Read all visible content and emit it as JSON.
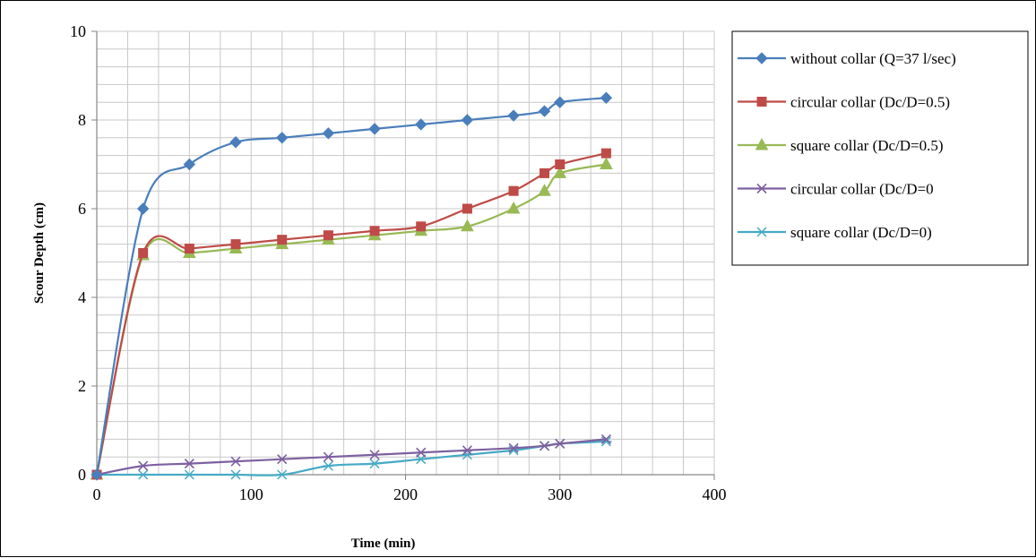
{
  "chart_data": {
    "type": "line",
    "title": "",
    "xlabel": "Time (min)",
    "ylabel": "Scour Depth (cm)",
    "xlim": [
      0,
      400
    ],
    "ylim": [
      0,
      10
    ],
    "x_ticks": [
      "0",
      "100",
      "200",
      "300",
      "400"
    ],
    "y_ticks": [
      "0",
      "2",
      "4",
      "6",
      "8",
      "10"
    ],
    "grid": true,
    "legend_position": "right",
    "series": [
      {
        "name": "without collar (Q=37 l/sec)",
        "color": "#4A7EBB",
        "marker": "diamond",
        "x": [
          0,
          30,
          60,
          90,
          120,
          150,
          180,
          210,
          240,
          270,
          290,
          300,
          330
        ],
        "y": [
          0,
          6.0,
          7.0,
          7.5,
          7.6,
          7.7,
          7.8,
          7.9,
          8.0,
          8.1,
          8.2,
          8.4,
          8.5
        ]
      },
      {
        "name": "circular collar (Dc/D=0.5)",
        "color": "#BE4B48",
        "marker": "square",
        "x": [
          0,
          30,
          60,
          90,
          120,
          150,
          180,
          210,
          240,
          270,
          290,
          300,
          330
        ],
        "y": [
          0,
          5.0,
          5.1,
          5.2,
          5.3,
          5.4,
          5.5,
          5.6,
          6.0,
          6.4,
          6.8,
          7.0,
          7.25
        ]
      },
      {
        "name": "square collar (Dc/D=0.5)",
        "color": "#98B954",
        "marker": "triangle",
        "x": [
          0,
          30,
          60,
          90,
          120,
          150,
          180,
          210,
          240,
          270,
          290,
          300,
          330
        ],
        "y": [
          0,
          4.95,
          5.0,
          5.1,
          5.2,
          5.3,
          5.4,
          5.5,
          5.6,
          6.0,
          6.4,
          6.8,
          7.0
        ]
      },
      {
        "name": "circular collar (Dc/D=0",
        "color": "#7D60A0",
        "marker": "x",
        "x": [
          0,
          30,
          60,
          90,
          120,
          150,
          180,
          210,
          240,
          270,
          290,
          300,
          330
        ],
        "y": [
          0,
          0.2,
          0.25,
          0.3,
          0.35,
          0.4,
          0.45,
          0.5,
          0.55,
          0.6,
          0.65,
          0.7,
          0.8
        ]
      },
      {
        "name": "square collar (Dc/D=0)",
        "color": "#46AAC5",
        "marker": "asterisk",
        "x": [
          0,
          30,
          60,
          90,
          120,
          150,
          180,
          210,
          240,
          270,
          290,
          300,
          330
        ],
        "y": [
          0,
          0,
          0,
          0,
          0,
          0.2,
          0.25,
          0.35,
          0.45,
          0.55,
          0.65,
          0.7,
          0.75
        ]
      }
    ]
  }
}
